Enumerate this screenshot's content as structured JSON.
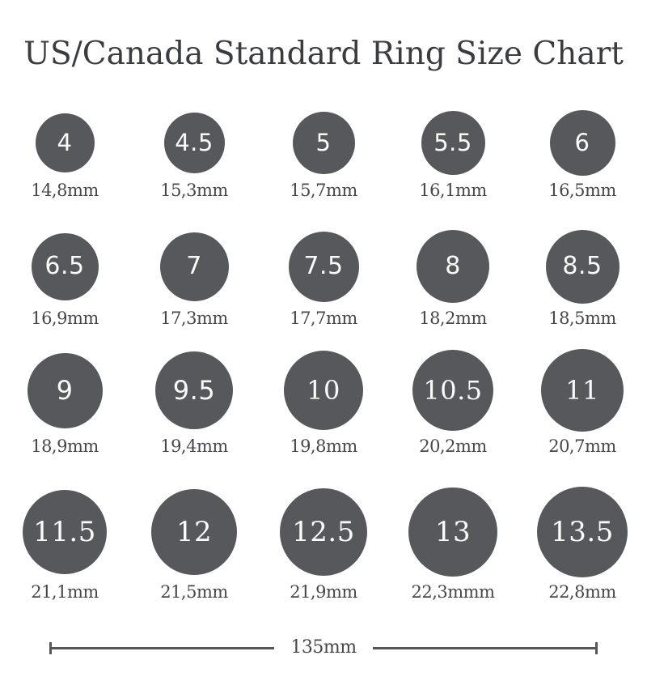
{
  "title": "US/Canada Standard Ring Size Chart",
  "colors": {
    "background": "#FFFFFF",
    "circle_fill": "#57585C",
    "number_text": "#FAFAF8",
    "title_text": "#3B3C40",
    "label_text": "#46474C",
    "ruler_line": "#55565A"
  },
  "rows": [
    {
      "items": [
        {
          "size": "4",
          "diameter_label": "14,8mm",
          "diameter_mm": 14.8
        },
        {
          "size": "4.5",
          "diameter_label": "15,3mm",
          "diameter_mm": 15.3
        },
        {
          "size": "5",
          "diameter_label": "15,7mm",
          "diameter_mm": 15.7
        },
        {
          "size": "5.5",
          "diameter_label": "16,1mm",
          "diameter_mm": 16.1
        },
        {
          "size": "6",
          "diameter_label": "16,5mm",
          "diameter_mm": 16.5
        }
      ]
    },
    {
      "items": [
        {
          "size": "6.5",
          "diameter_label": "16,9mm",
          "diameter_mm": 16.9
        },
        {
          "size": "7",
          "diameter_label": "17,3mm",
          "diameter_mm": 17.3
        },
        {
          "size": "7.5",
          "diameter_label": "17,7mm",
          "diameter_mm": 17.7
        },
        {
          "size": "8",
          "diameter_label": "18,2mm",
          "diameter_mm": 18.2
        },
        {
          "size": "8.5",
          "diameter_label": "18,5mm",
          "diameter_mm": 18.5
        }
      ]
    },
    {
      "items": [
        {
          "size": "9",
          "diameter_label": "18,9mm",
          "diameter_mm": 18.9
        },
        {
          "size": "9.5",
          "diameter_label": "19,4mm",
          "diameter_mm": 19.4
        },
        {
          "size": "10",
          "diameter_label": "19,8mm",
          "diameter_mm": 19.8
        },
        {
          "size": "10.5",
          "diameter_label": "20,2mm",
          "diameter_mm": 20.2
        },
        {
          "size": "11",
          "diameter_label": "20,7mm",
          "diameter_mm": 20.7
        }
      ]
    },
    {
      "items": [
        {
          "size": "11.5",
          "diameter_label": "21,1mm",
          "diameter_mm": 21.1
        },
        {
          "size": "12",
          "diameter_label": "21,5mm",
          "diameter_mm": 21.5
        },
        {
          "size": "12.5",
          "diameter_label": "21,9mm",
          "diameter_mm": 21.9
        },
        {
          "size": "13",
          "diameter_label": "22,3mmm",
          "diameter_mm": 22.3
        },
        {
          "size": "13.5",
          "diameter_label": "22,8mm",
          "diameter_mm": 22.8
        }
      ]
    }
  ],
  "ruler": {
    "label": "135mm",
    "length_mm": 135
  }
}
